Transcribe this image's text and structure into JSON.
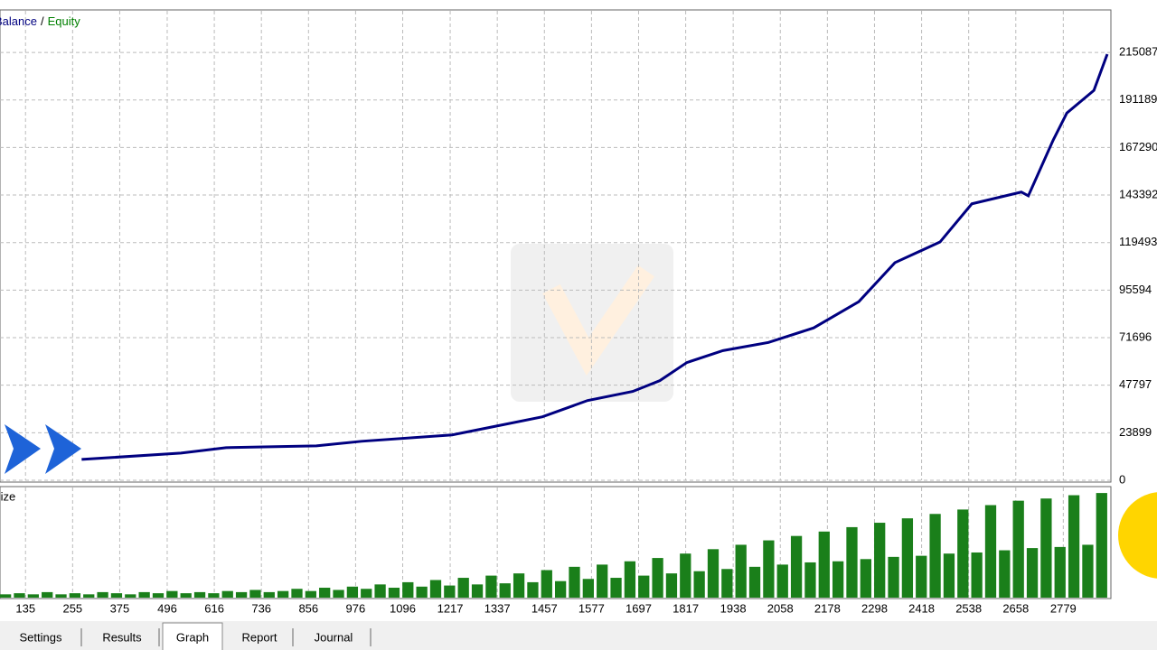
{
  "chart_data": [
    {
      "type": "line",
      "legend": [
        "Balance",
        "Equity"
      ],
      "legend_colors": [
        "#000080",
        "#008000"
      ],
      "legend_separator": "/",
      "series": [
        {
          "name": "Balance",
          "color": "#000080",
          "x": [
            278,
            531,
            646,
            876,
            991,
            1222,
            1337,
            1452,
            1567,
            1682,
            1751,
            1820,
            1912,
            2028,
            2143,
            2258,
            2350,
            2465,
            2546,
            2672,
            2690,
            2753,
            2788,
            2857,
            2891
          ],
          "values": [
            10480,
            13670,
            16400,
            17300,
            19600,
            22800,
            27340,
            31900,
            40100,
            44660,
            50100,
            59200,
            65200,
            69300,
            76600,
            89800,
            109400,
            119800,
            139000,
            144900,
            143000,
            170900,
            184600,
            196000,
            214200
          ]
        }
      ],
      "xlim": [
        70,
        2898
      ],
      "ylim": [
        0,
        236000
      ],
      "xticks": [
        135,
        255,
        375,
        496,
        616,
        736,
        856,
        976,
        1096,
        1217,
        1337,
        1457,
        1577,
        1697,
        1817,
        1938,
        2058,
        2178,
        2298,
        2418,
        2538,
        2658,
        2779
      ],
      "yticks": [
        0,
        23899,
        47797,
        71696,
        95594,
        119493,
        143392,
        167290,
        191189,
        215087
      ],
      "grid": true
    },
    {
      "type": "bar",
      "title": "Size",
      "color": "#1a7f1a",
      "ylim": [
        0,
        100
      ],
      "values": [
        3,
        4,
        3,
        5,
        3,
        4,
        3,
        5,
        4,
        3,
        5,
        4,
        6,
        4,
        5,
        4,
        6,
        5,
        7,
        5,
        6,
        8,
        6,
        9,
        7,
        10,
        8,
        12,
        9,
        14,
        10,
        16,
        11,
        18,
        12,
        20,
        13,
        22,
        14,
        25,
        15,
        28,
        17,
        30,
        18,
        33,
        20,
        36,
        22,
        40,
        24,
        44,
        26,
        48,
        28,
        52,
        30,
        56,
        32,
        60,
        33,
        64,
        35,
        68,
        37,
        72,
        38,
        76,
        40,
        80,
        41,
        84,
        43,
        88,
        45,
        90,
        46,
        93,
        48,
        95
      ]
    }
  ],
  "tabs": [
    "Settings",
    "Results",
    "Graph",
    "Report",
    "Journal"
  ],
  "active_tab": 2
}
